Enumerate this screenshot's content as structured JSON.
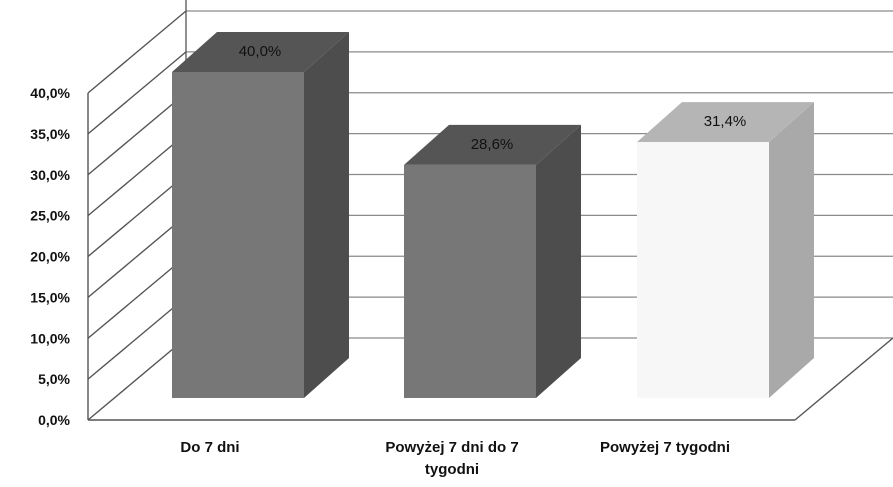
{
  "chart_data": {
    "type": "bar",
    "categories": [
      "Do 7 dni",
      "Powyżej 7 dni do 7 tygodni",
      "Powyżej 7 tygodni"
    ],
    "category_label_lines": [
      [
        "Do 7 dni"
      ],
      [
        "Powyżej 7 dni do 7",
        "tygodni"
      ],
      [
        "Powyżej 7 tygodni"
      ]
    ],
    "values": [
      40.0,
      28.6,
      31.4
    ],
    "data_labels": [
      "40,0%",
      "28,6%",
      "31,4%"
    ],
    "ylim": [
      0,
      40
    ],
    "yticks": [
      "0,0%",
      "5,0%",
      "10,0%",
      "15,0%",
      "20,0%",
      "25,0%",
      "30,0%",
      "35,0%",
      "40,0%"
    ],
    "grid": true,
    "style": "3d-bar",
    "colors": {
      "bar_front": [
        "#777777",
        "#777777",
        "#f7f7f7"
      ],
      "bar_side": [
        "#4d4d4d",
        "#4d4d4d",
        "#a9a9a9"
      ],
      "bar_top": [
        "#555555",
        "#555555",
        "#b5b5b5"
      ],
      "gridline": "#8a8a8a",
      "wall_line": "#555555"
    }
  }
}
